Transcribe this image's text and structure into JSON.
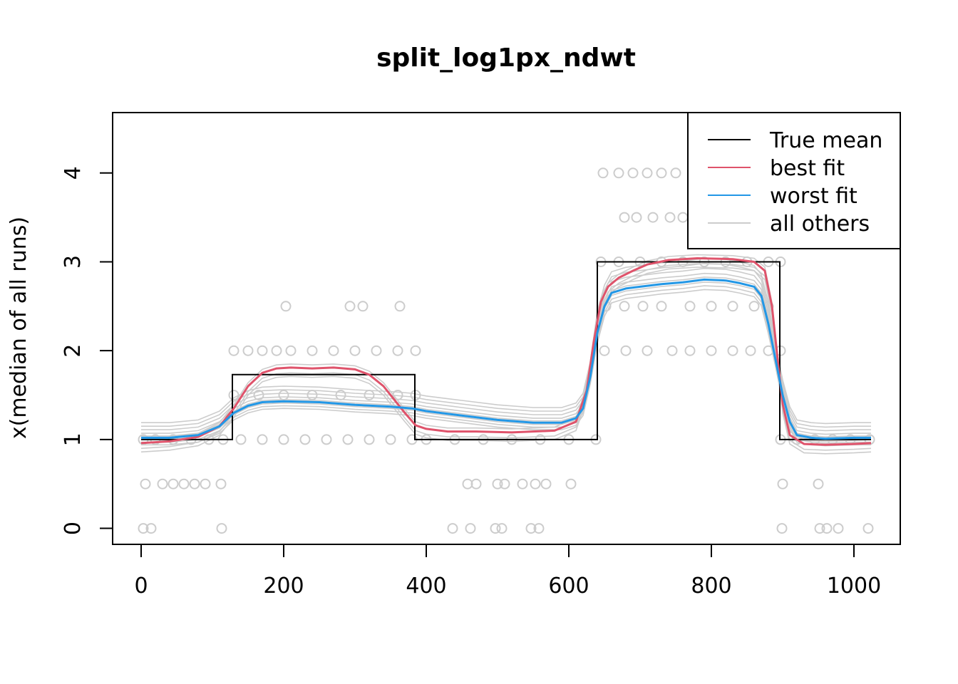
{
  "chart_data": {
    "type": "line",
    "title": "split_log1px_ndwt",
    "xlabel": "",
    "ylabel": "x(median of all runs)",
    "xlim": [
      -40,
      1065
    ],
    "ylim": [
      -0.18,
      4.68
    ],
    "x_ticks": [
      0,
      200,
      400,
      600,
      800,
      1000
    ],
    "y_ticks": [
      0,
      1,
      2,
      3,
      4
    ],
    "legend": {
      "position": "top-right",
      "entries": [
        {
          "label": "True mean",
          "color": "#000000"
        },
        {
          "label": "best fit",
          "color": "#DF536B"
        },
        {
          "label": "worst fit",
          "color": "#2297E6"
        },
        {
          "label": "all others",
          "color": "#CCCCCC"
        }
      ]
    },
    "colors": {
      "true_mean": "#000000",
      "best": "#DF536B",
      "worst": "#2297E6",
      "others": "#CCCCCC"
    },
    "true_mean": {
      "x": [
        0,
        128,
        128,
        384,
        384,
        640,
        640,
        896,
        896,
        1024
      ],
      "y": [
        1,
        1,
        1.73,
        1.73,
        1,
        1,
        3,
        3,
        1,
        1
      ]
    },
    "best_fit": {
      "x": [
        0,
        40,
        80,
        110,
        130,
        150,
        170,
        190,
        210,
        240,
        270,
        300,
        320,
        340,
        355,
        370,
        385,
        400,
        430,
        470,
        520,
        580,
        610,
        625,
        635,
        645,
        655,
        670,
        690,
        710,
        740,
        780,
        830,
        860,
        875,
        885,
        893,
        900,
        910,
        930,
        960,
        1000,
        1024
      ],
      "y": [
        0.96,
        0.98,
        1.03,
        1.15,
        1.35,
        1.6,
        1.75,
        1.8,
        1.81,
        1.8,
        1.81,
        1.79,
        1.73,
        1.6,
        1.45,
        1.3,
        1.16,
        1.12,
        1.09,
        1.09,
        1.08,
        1.1,
        1.2,
        1.55,
        2.1,
        2.55,
        2.72,
        2.82,
        2.9,
        2.97,
        3.02,
        3.04,
        3.03,
        3.0,
        2.9,
        2.5,
        1.9,
        1.4,
        1.05,
        0.95,
        0.94,
        0.95,
        0.96
      ]
    },
    "worst_fit": {
      "x": [
        0,
        40,
        80,
        110,
        130,
        150,
        170,
        200,
        250,
        300,
        350,
        380,
        400,
        450,
        500,
        550,
        590,
        610,
        620,
        630,
        640,
        650,
        660,
        680,
        700,
        730,
        760,
        790,
        820,
        840,
        860,
        870,
        880,
        890,
        900,
        910,
        920,
        940,
        960,
        1000,
        1024
      ],
      "y": [
        1.02,
        1.02,
        1.05,
        1.15,
        1.3,
        1.38,
        1.42,
        1.43,
        1.42,
        1.39,
        1.37,
        1.35,
        1.32,
        1.27,
        1.22,
        1.19,
        1.19,
        1.24,
        1.35,
        1.7,
        2.2,
        2.5,
        2.65,
        2.7,
        2.72,
        2.75,
        2.77,
        2.8,
        2.79,
        2.76,
        2.72,
        2.62,
        2.3,
        1.9,
        1.5,
        1.2,
        1.05,
        1.02,
        1.01,
        1.02,
        1.02
      ]
    },
    "observations": [
      {
        "x": 3,
        "y": 1
      },
      {
        "x": 20,
        "y": 1
      },
      {
        "x": 45,
        "y": 1
      },
      {
        "x": 70,
        "y": 1
      },
      {
        "x": 95,
        "y": 1
      },
      {
        "x": 115,
        "y": 1
      },
      {
        "x": 6,
        "y": 0.5
      },
      {
        "x": 30,
        "y": 0.5
      },
      {
        "x": 45,
        "y": 0.5
      },
      {
        "x": 60,
        "y": 0.5
      },
      {
        "x": 75,
        "y": 0.5
      },
      {
        "x": 90,
        "y": 0.5
      },
      {
        "x": 112,
        "y": 0.5
      },
      {
        "x": 3,
        "y": 0
      },
      {
        "x": 14,
        "y": 0
      },
      {
        "x": 113,
        "y": 0
      },
      {
        "x": 130,
        "y": 2
      },
      {
        "x": 150,
        "y": 2
      },
      {
        "x": 170,
        "y": 2
      },
      {
        "x": 190,
        "y": 2
      },
      {
        "x": 210,
        "y": 2
      },
      {
        "x": 240,
        "y": 2
      },
      {
        "x": 270,
        "y": 2
      },
      {
        "x": 300,
        "y": 2
      },
      {
        "x": 330,
        "y": 2
      },
      {
        "x": 360,
        "y": 2
      },
      {
        "x": 385,
        "y": 2
      },
      {
        "x": 203,
        "y": 2.5
      },
      {
        "x": 293,
        "y": 2.5
      },
      {
        "x": 311,
        "y": 2.5
      },
      {
        "x": 363,
        "y": 2.5
      },
      {
        "x": 130,
        "y": 1.5
      },
      {
        "x": 165,
        "y": 1.5
      },
      {
        "x": 200,
        "y": 1.5
      },
      {
        "x": 240,
        "y": 1.5
      },
      {
        "x": 280,
        "y": 1.5
      },
      {
        "x": 320,
        "y": 1.5
      },
      {
        "x": 360,
        "y": 1.5
      },
      {
        "x": 385,
        "y": 1.5
      },
      {
        "x": 140,
        "y": 1
      },
      {
        "x": 170,
        "y": 1
      },
      {
        "x": 200,
        "y": 1
      },
      {
        "x": 230,
        "y": 1
      },
      {
        "x": 260,
        "y": 1
      },
      {
        "x": 290,
        "y": 1
      },
      {
        "x": 320,
        "y": 1
      },
      {
        "x": 350,
        "y": 1
      },
      {
        "x": 380,
        "y": 1
      },
      {
        "x": 400,
        "y": 1
      },
      {
        "x": 440,
        "y": 1
      },
      {
        "x": 480,
        "y": 1
      },
      {
        "x": 520,
        "y": 1
      },
      {
        "x": 560,
        "y": 1
      },
      {
        "x": 600,
        "y": 1
      },
      {
        "x": 638,
        "y": 1
      },
      {
        "x": 458,
        "y": 0.5
      },
      {
        "x": 470,
        "y": 0.5
      },
      {
        "x": 500,
        "y": 0.5
      },
      {
        "x": 510,
        "y": 0.5
      },
      {
        "x": 535,
        "y": 0.5
      },
      {
        "x": 553,
        "y": 0.5
      },
      {
        "x": 568,
        "y": 0.5
      },
      {
        "x": 603,
        "y": 0.5
      },
      {
        "x": 437,
        "y": 0
      },
      {
        "x": 462,
        "y": 0
      },
      {
        "x": 497,
        "y": 0
      },
      {
        "x": 506,
        "y": 0
      },
      {
        "x": 547,
        "y": 0
      },
      {
        "x": 558,
        "y": 0
      },
      {
        "x": 645,
        "y": 3
      },
      {
        "x": 670,
        "y": 3
      },
      {
        "x": 700,
        "y": 3
      },
      {
        "x": 730,
        "y": 3
      },
      {
        "x": 760,
        "y": 3
      },
      {
        "x": 790,
        "y": 3
      },
      {
        "x": 820,
        "y": 3
      },
      {
        "x": 850,
        "y": 3
      },
      {
        "x": 880,
        "y": 3
      },
      {
        "x": 897,
        "y": 3
      },
      {
        "x": 648,
        "y": 4
      },
      {
        "x": 670,
        "y": 4
      },
      {
        "x": 690,
        "y": 4
      },
      {
        "x": 710,
        "y": 4
      },
      {
        "x": 730,
        "y": 4
      },
      {
        "x": 750,
        "y": 4
      },
      {
        "x": 678,
        "y": 3.5
      },
      {
        "x": 695,
        "y": 3.5
      },
      {
        "x": 718,
        "y": 3.5
      },
      {
        "x": 742,
        "y": 3.5
      },
      {
        "x": 760,
        "y": 3.5
      },
      {
        "x": 652,
        "y": 2.5
      },
      {
        "x": 678,
        "y": 2.5
      },
      {
        "x": 704,
        "y": 2.5
      },
      {
        "x": 730,
        "y": 2.5
      },
      {
        "x": 770,
        "y": 2.5
      },
      {
        "x": 800,
        "y": 2.5
      },
      {
        "x": 830,
        "y": 2.5
      },
      {
        "x": 860,
        "y": 2.5
      },
      {
        "x": 880,
        "y": 2.5
      },
      {
        "x": 650,
        "y": 2
      },
      {
        "x": 680,
        "y": 2
      },
      {
        "x": 710,
        "y": 2
      },
      {
        "x": 745,
        "y": 2
      },
      {
        "x": 770,
        "y": 2
      },
      {
        "x": 800,
        "y": 2
      },
      {
        "x": 830,
        "y": 2
      },
      {
        "x": 855,
        "y": 2
      },
      {
        "x": 880,
        "y": 2
      },
      {
        "x": 897,
        "y": 2
      },
      {
        "x": 897,
        "y": 1
      },
      {
        "x": 920,
        "y": 1
      },
      {
        "x": 945,
        "y": 1
      },
      {
        "x": 970,
        "y": 1
      },
      {
        "x": 995,
        "y": 1
      },
      {
        "x": 1022,
        "y": 1
      },
      {
        "x": 900,
        "y": 0.5
      },
      {
        "x": 950,
        "y": 0.5
      },
      {
        "x": 899,
        "y": 0
      },
      {
        "x": 952,
        "y": 0
      },
      {
        "x": 962,
        "y": 0
      },
      {
        "x": 978,
        "y": 0
      },
      {
        "x": 1020,
        "y": 0
      }
    ]
  }
}
